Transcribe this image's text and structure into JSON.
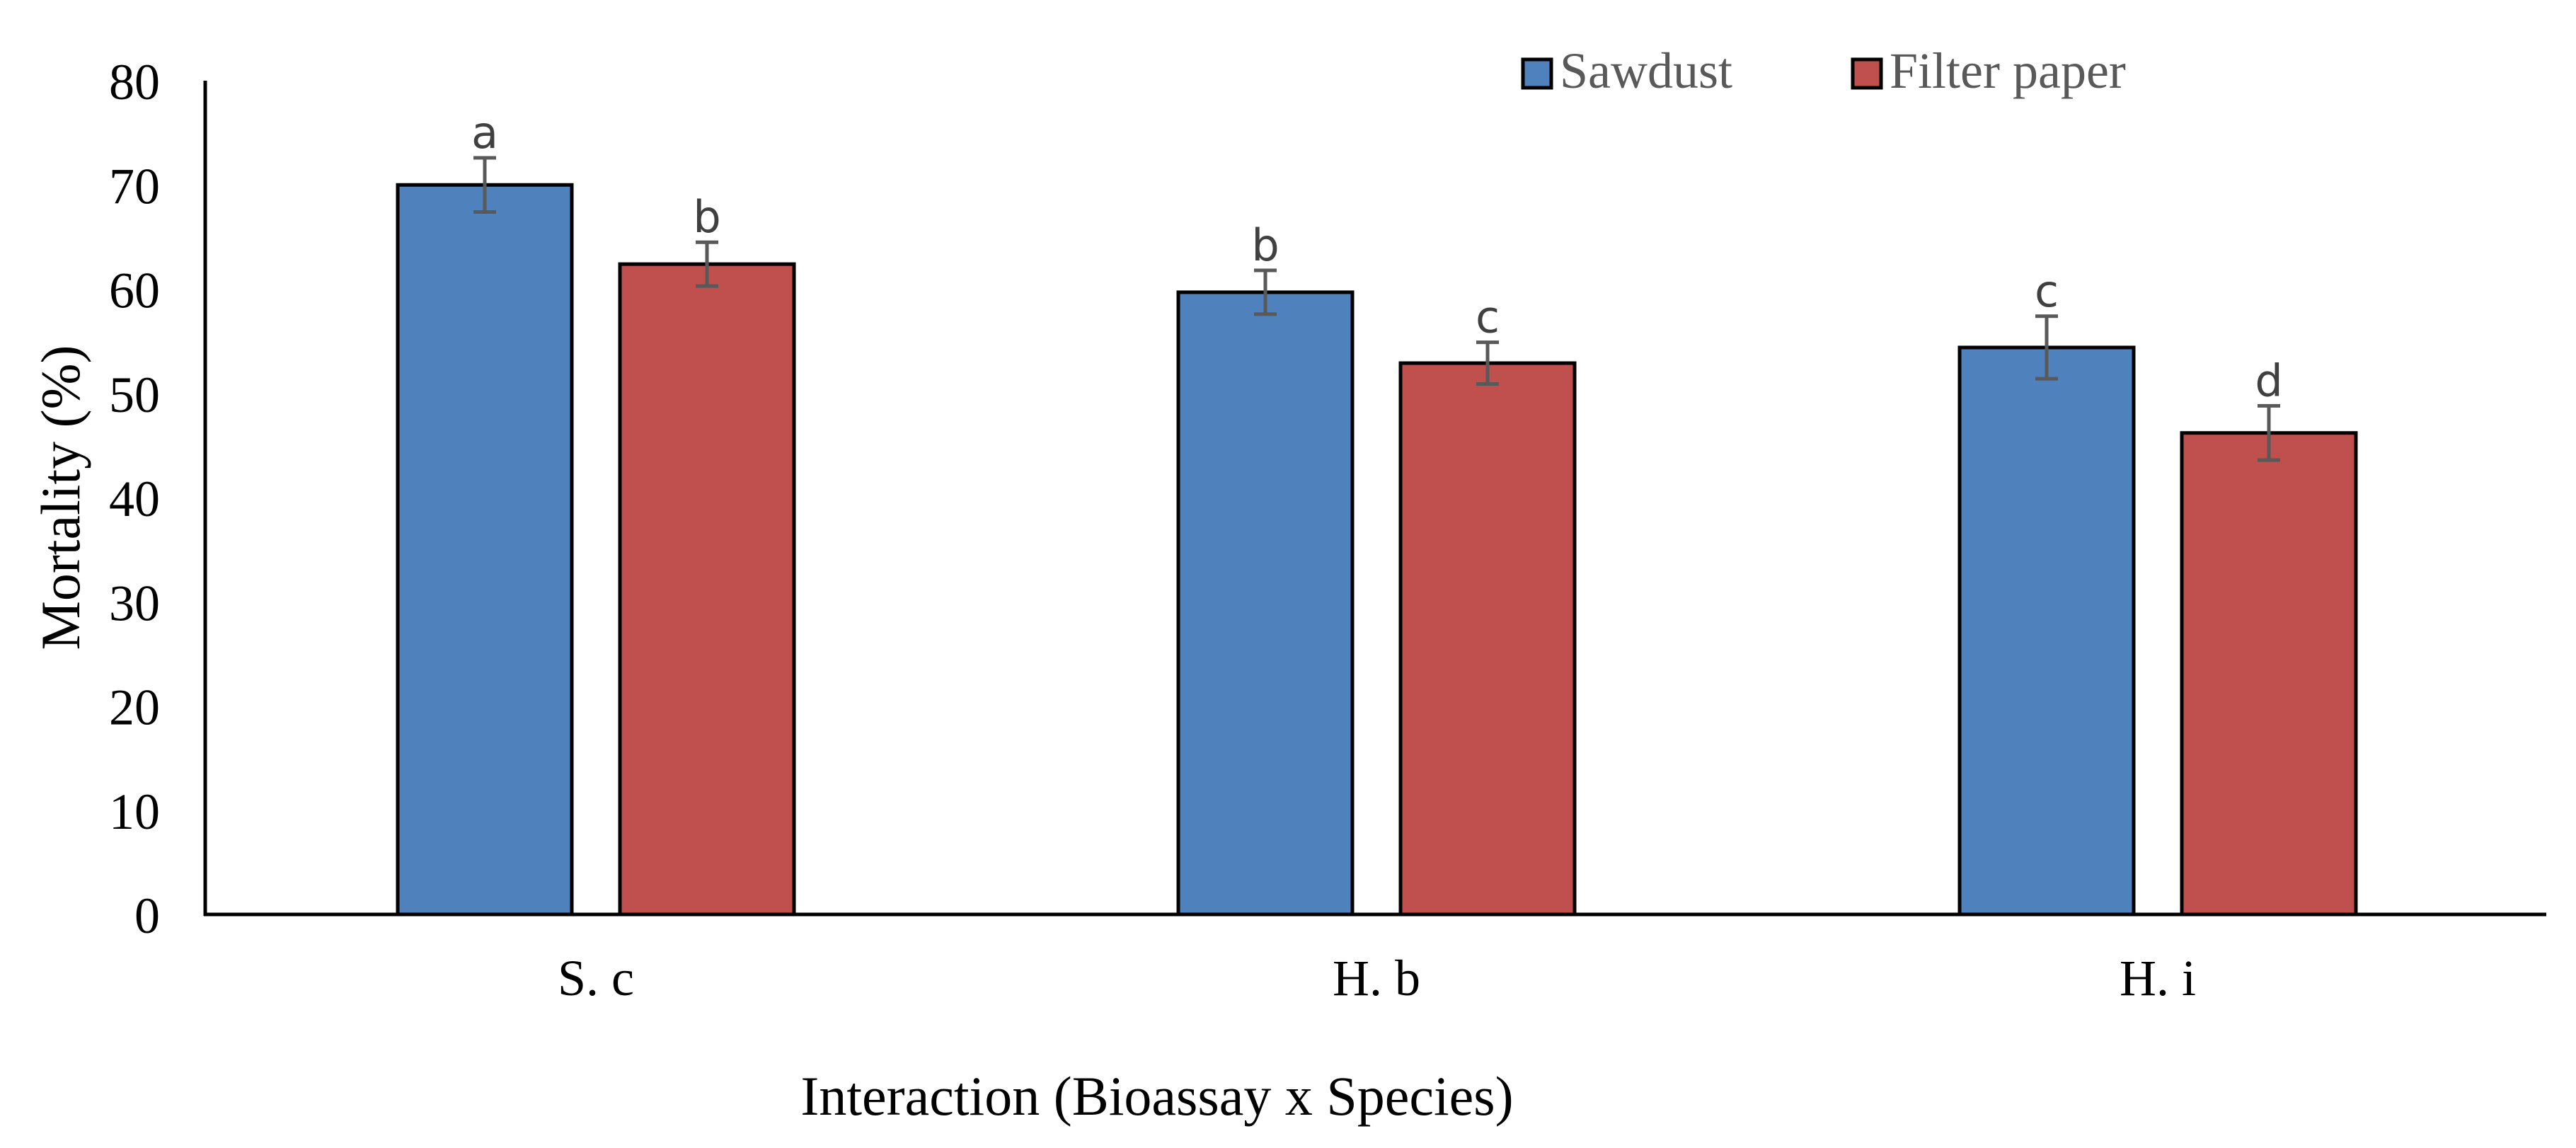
{
  "chart_data": {
    "type": "bar",
    "categories": [
      "S. c",
      "H. b",
      "H. i"
    ],
    "series": [
      {
        "name": "Sawdust",
        "color": "#4f81bd",
        "values": [
          70,
          59.7,
          54.4
        ],
        "errors": [
          2.6,
          2.1,
          3.0
        ],
        "letters": [
          "a",
          "b",
          "c"
        ]
      },
      {
        "name": "Filter paper",
        "color": "#c0504d",
        "values": [
          62.4,
          52.9,
          46.2
        ],
        "errors": [
          2.1,
          2.0,
          2.6
        ],
        "letters": [
          "b",
          "c",
          "d"
        ]
      }
    ],
    "xlabel": "Interaction (Bioassay x Species)",
    "ylabel": "Mortality (%)",
    "ylim": [
      0,
      80
    ],
    "yticks": [
      "0",
      "10",
      "20",
      "30",
      "40",
      "50",
      "60",
      "70",
      "80"
    ],
    "grid": false,
    "legend_position": "top-right"
  }
}
